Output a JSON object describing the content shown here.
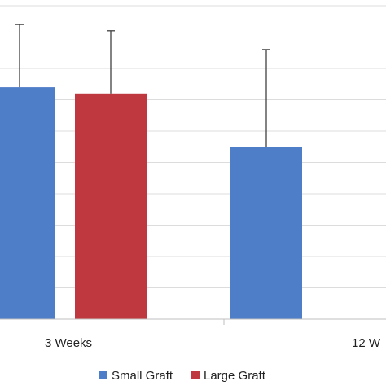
{
  "chart_data": {
    "type": "bar",
    "categories": [
      "3 Weeks",
      "12 W"
    ],
    "series": [
      {
        "name": "Small Graft",
        "color": "#4f7ec8",
        "values": [
          74,
          55
        ],
        "error": [
          20,
          31
        ]
      },
      {
        "name": "Large Graft",
        "color": "#c0383f",
        "values": [
          72,
          null
        ],
        "error": [
          20,
          null
        ]
      }
    ],
    "ylim": [
      0,
      100
    ],
    "grid": true,
    "legend_position": "bottom-center",
    "colors": {
      "gridline": "#dcdcdc",
      "axis": "#bfbfbf",
      "error_bar": "#404040"
    }
  }
}
